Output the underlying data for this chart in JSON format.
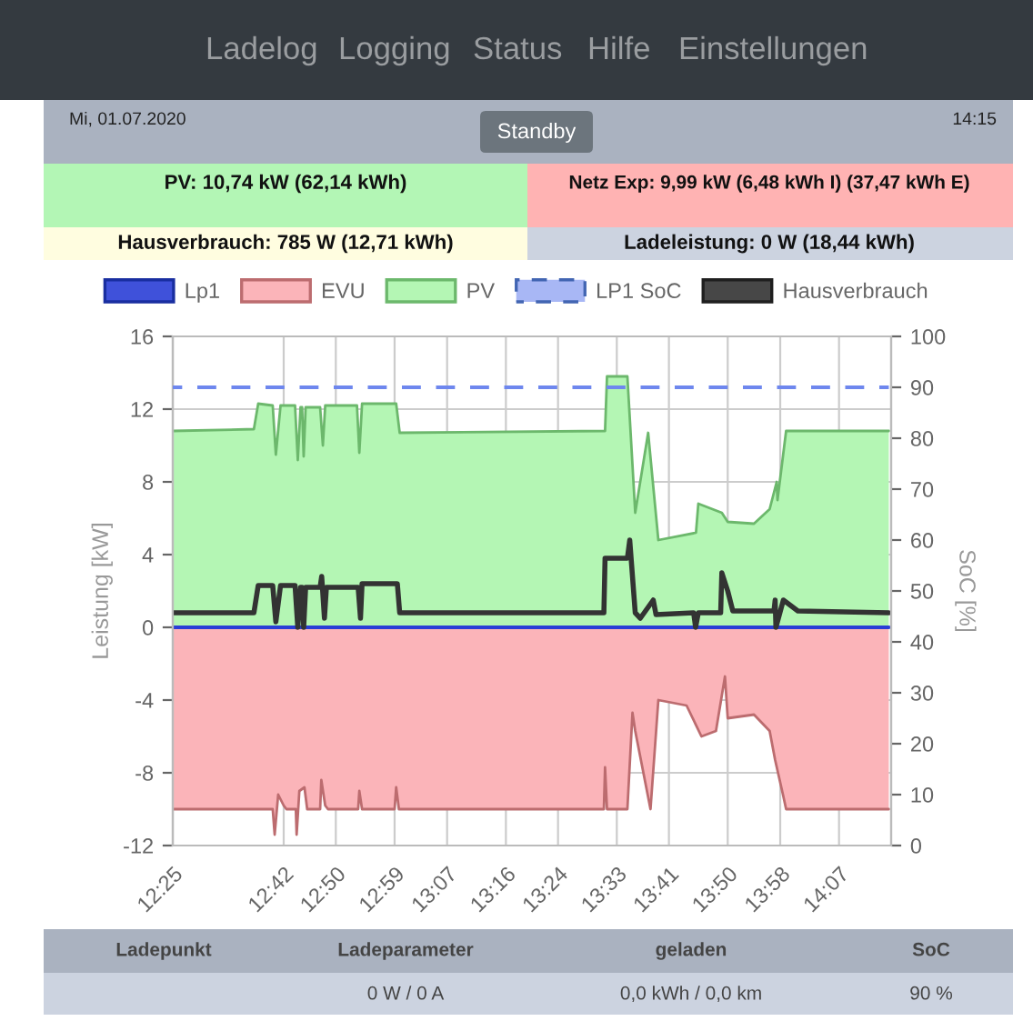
{
  "chart_data": {
    "type": "area",
    "annotations": [
      "Ladelog",
      "Logging",
      "Status",
      "Hilfe",
      "Einstellungen",
      "Mi, 01.07.2020",
      "Standby",
      "14:15",
      "PV: 10,74 kW (62,14 kWh)",
      "Netz Exp: 9,99 kW (6,48 kWh I) (37,47 kWh E)",
      "Hausverbrauch: 785 W (12,71 kWh)",
      "Ladeleistung: 0 W (18,44 kWh)",
      "Ladepunkt",
      "Ladeparameter",
      "geladen",
      "SoC",
      "0 W / 0 A",
      "0,0 kWh / 0,0 km",
      "90 %"
    ],
    "ylabel": "Leistung [kW]",
    "y2label": "SoC [%]",
    "xlim": [
      12.417,
      14.25
    ],
    "xticks": [
      {
        "value": 12.417,
        "label": "12:25"
      },
      {
        "value": 12.7,
        "label": "12:42"
      },
      {
        "value": 12.833,
        "label": "12:50"
      },
      {
        "value": 12.983,
        "label": "12:59"
      },
      {
        "value": 13.117,
        "label": "13:07"
      },
      {
        "value": 13.267,
        "label": "13:16"
      },
      {
        "value": 13.4,
        "label": "13:24"
      },
      {
        "value": 13.55,
        "label": "13:33"
      },
      {
        "value": 13.683,
        "label": "13:41"
      },
      {
        "value": 13.833,
        "label": "13:50"
      },
      {
        "value": 13.967,
        "label": "13:58"
      },
      {
        "value": 14.117,
        "label": "14:07"
      }
    ],
    "ylim": [
      -12,
      16
    ],
    "yticks": [
      -12,
      -8,
      -4,
      0,
      4,
      8,
      12,
      16
    ],
    "y2lim": [
      0,
      100
    ],
    "y2ticks": [
      0,
      10,
      20,
      30,
      40,
      50,
      60,
      70,
      80,
      90,
      100
    ],
    "grid": true,
    "legend": "top",
    "series": [
      {
        "name": "Lp1",
        "type": "line",
        "color": "#2a3ed6",
        "x": [
          12.417,
          14.244
        ],
        "values": [
          0,
          0
        ]
      },
      {
        "name": "EVU",
        "color": "#fbb4b9",
        "x": [
          12.417,
          12.672,
          12.677,
          12.686,
          12.7,
          12.707,
          12.731,
          12.733,
          12.74,
          12.753,
          12.76,
          12.793,
          12.796,
          12.806,
          12.813,
          12.89,
          12.893,
          12.9,
          12.983,
          12.987,
          12.994,
          13.517,
          13.52,
          13.525,
          13.577,
          13.59,
          13.597,
          13.636,
          13.656,
          13.728,
          13.766,
          13.803,
          13.826,
          13.833,
          13.9,
          13.94,
          13.954,
          13.975,
          13.982,
          14.244
        ],
        "values": [
          -10,
          -10,
          -11.4,
          -9.2,
          -9.8,
          -10,
          -10,
          -11.4,
          -9.0,
          -8.8,
          -10,
          -10,
          -8.4,
          -9.8,
          -10,
          -10,
          -9.0,
          -10,
          -10,
          -8.8,
          -10,
          -10,
          -7.7,
          -10,
          -10,
          -4.7,
          -5.7,
          -10,
          -4.0,
          -4.3,
          -6.0,
          -5.7,
          -2.7,
          -5.0,
          -4.8,
          -5.7,
          -7.3,
          -9.3,
          -10,
          -10
        ]
      },
      {
        "name": "PV",
        "color": "#b4f6b4",
        "x": [
          12.417,
          12.624,
          12.635,
          12.672,
          12.68,
          12.692,
          12.729,
          12.736,
          12.743,
          12.747,
          12.751,
          12.756,
          12.793,
          12.8,
          12.806,
          12.887,
          12.893,
          12.9,
          12.987,
          12.996,
          13.52,
          13.525,
          13.577,
          13.597,
          13.63,
          13.656,
          13.752,
          13.758,
          13.818,
          13.833,
          13.9,
          13.94,
          13.958,
          13.96,
          13.982,
          14.244
        ],
        "values": [
          10.8,
          10.9,
          12.3,
          12.2,
          9.5,
          12.2,
          12.2,
          9.2,
          12.1,
          12.1,
          9.4,
          12.1,
          12.1,
          10.0,
          12.2,
          12.2,
          9.6,
          12.3,
          12.3,
          10.7,
          10.8,
          13.8,
          13.8,
          6.3,
          10.7,
          4.8,
          5.2,
          6.8,
          6.3,
          5.8,
          5.7,
          6.5,
          8.0,
          7.0,
          10.8,
          10.8
        ]
      },
      {
        "name": "LP1 SoC",
        "type": "line",
        "axis": "y2",
        "line_style": "dashed",
        "color": "#6e87ee",
        "x": [
          12.417,
          14.244
        ],
        "values": [
          90,
          90
        ]
      },
      {
        "name": "Hausverbrauch",
        "type": "line",
        "color": "#333333",
        "x": [
          12.417,
          12.624,
          12.635,
          12.672,
          12.68,
          12.692,
          12.729,
          12.736,
          12.743,
          12.747,
          12.751,
          12.756,
          12.793,
          12.797,
          12.804,
          12.809,
          12.89,
          12.896,
          12.9,
          12.99,
          12.996,
          13.517,
          13.52,
          13.577,
          13.583,
          13.597,
          13.61,
          13.643,
          13.65,
          13.746,
          13.751,
          13.758,
          13.815,
          13.818,
          13.833,
          13.846,
          13.951,
          13.954,
          13.956,
          13.975,
          14.012,
          14.244
        ],
        "values": [
          0.8,
          0.8,
          2.3,
          2.3,
          0.3,
          2.3,
          2.3,
          0,
          2.2,
          2.2,
          0,
          2.2,
          2.2,
          2.8,
          0.5,
          2.2,
          2.2,
          0.5,
          2.4,
          2.4,
          0.8,
          0.8,
          3.8,
          3.8,
          4.8,
          0.8,
          0.5,
          1.5,
          0.7,
          0.8,
          0,
          0.8,
          0.8,
          3.0,
          2.0,
          0.9,
          0.9,
          1.5,
          0,
          1.5,
          0.9,
          0.8
        ]
      }
    ]
  }
}
